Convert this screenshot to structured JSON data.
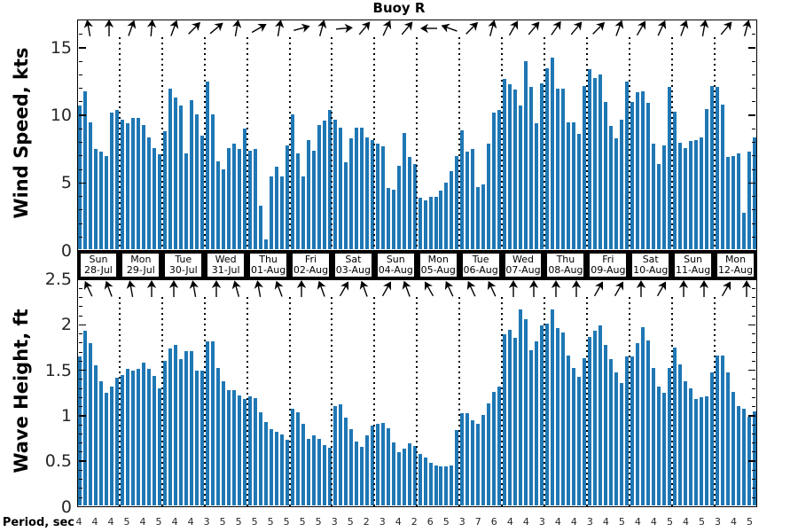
{
  "title": "Buoy R",
  "colors": {
    "bar": "#1f77b4",
    "axis": "#000000",
    "tick_label": "#262626"
  },
  "top_panel": {
    "ylabel": "Wind Speed, kts",
    "yticks": [
      0,
      5,
      10,
      15
    ],
    "ymax": 17.1,
    "minor_step": 1
  },
  "bottom_panel": {
    "ylabel": "Wave Height, ft",
    "yticks": [
      0,
      0.5,
      1,
      1.5,
      2,
      2.5
    ],
    "ymax": 2.5,
    "minor_step": 0.1
  },
  "days": [
    {
      "name": "Sun",
      "date": "28-Jul"
    },
    {
      "name": "Mon",
      "date": "29-Jul"
    },
    {
      "name": "Tue",
      "date": "30-Jul"
    },
    {
      "name": "Wed",
      "date": "31-Jul"
    },
    {
      "name": "Thu",
      "date": "01-Aug"
    },
    {
      "name": "Fri",
      "date": "02-Aug"
    },
    {
      "name": "Sat",
      "date": "03-Aug"
    },
    {
      "name": "Sun",
      "date": "04-Aug"
    },
    {
      "name": "Mon",
      "date": "05-Aug"
    },
    {
      "name": "Tue",
      "date": "06-Aug"
    },
    {
      "name": "Wed",
      "date": "07-Aug"
    },
    {
      "name": "Thu",
      "date": "08-Aug"
    },
    {
      "name": "Fri",
      "date": "09-Aug"
    },
    {
      "name": "Sat",
      "date": "10-Aug"
    },
    {
      "name": "Sun",
      "date": "11-Aug"
    },
    {
      "name": "Mon",
      "date": "12-Aug"
    }
  ],
  "bottom_axis": {
    "label": "Period, sec",
    "values": [
      4,
      4,
      4,
      5,
      4,
      5,
      4,
      4,
      3,
      5,
      5,
      5,
      5,
      5,
      5,
      5,
      3,
      5,
      2,
      3,
      4,
      2,
      6,
      5,
      3,
      7,
      6,
      4,
      4,
      3,
      4,
      4,
      3,
      4,
      5,
      4,
      4,
      5,
      4,
      5,
      3,
      4,
      5
    ]
  },
  "wind_arrows_deg": [
    100,
    90,
    70,
    85,
    70,
    45,
    40,
    80,
    30,
    80,
    15,
    75,
    5,
    50,
    65,
    50,
    180,
    160,
    45,
    75,
    60,
    50,
    55,
    50,
    45,
    70,
    60,
    65,
    70,
    80,
    50,
    75
  ],
  "wave_arrows_deg": [
    115,
    110,
    100,
    90,
    90,
    100,
    90,
    105,
    100,
    110,
    90,
    110,
    60,
    110,
    60,
    110,
    120,
    115,
    115,
    115,
    90,
    90,
    90,
    90,
    60,
    60,
    90,
    60,
    90,
    90,
    60,
    90
  ],
  "chart_data": [
    {
      "type": "bar",
      "title": "Buoy R",
      "ylabel": "Wind Speed, kts",
      "ylim": [
        0,
        17.1
      ],
      "yticks": [
        0,
        5,
        10,
        15
      ],
      "bars_per_day": 8,
      "categories": [
        "Sun 28-Jul",
        "Mon 29-Jul",
        "Tue 30-Jul",
        "Wed 31-Jul",
        "Thu 01-Aug",
        "Fri 02-Aug",
        "Sat 03-Aug",
        "Sun 04-Aug",
        "Mon 05-Aug",
        "Tue 06-Aug",
        "Wed 07-Aug",
        "Thu 08-Aug",
        "Fri 09-Aug",
        "Sat 10-Aug",
        "Sun 11-Aug",
        "Mon 12-Aug"
      ],
      "values": [
        10.7,
        11.8,
        9.5,
        7.5,
        7.3,
        7.0,
        10.2,
        10.4,
        9.7,
        9.4,
        9.8,
        9.8,
        9.3,
        8.4,
        7.6,
        7.1,
        8.8,
        12.0,
        11.3,
        10.7,
        7.2,
        11.1,
        10.1,
        8.5,
        12.5,
        10.1,
        6.6,
        6.0,
        7.6,
        7.9,
        7.5,
        9.0,
        7.4,
        7.5,
        3.3,
        0.8,
        5.5,
        6.2,
        5.5,
        7.8,
        10.1,
        7.2,
        5.5,
        8.2,
        7.4,
        9.3,
        9.6,
        10.4,
        9.7,
        9.1,
        6.5,
        8.3,
        9.1,
        9.1,
        8.4,
        8.2,
        7.9,
        7.7,
        4.6,
        4.5,
        6.3,
        8.7,
        6.9,
        6.4,
        3.9,
        3.7,
        4.0,
        4.0,
        4.4,
        5.0,
        5.9,
        7.0,
        8.9,
        7.3,
        7.5,
        4.7,
        4.9,
        7.9,
        10.2,
        10.4,
        12.7,
        12.3,
        11.9,
        10.7,
        14.0,
        12.1,
        9.4,
        12.4,
        13.5,
        14.3,
        12.0,
        12.0,
        9.5,
        9.5,
        8.6,
        12.2,
        13.4,
        12.8,
        13.0,
        11.0,
        9.2,
        8.3,
        9.7,
        12.5,
        11.0,
        11.7,
        11.8,
        10.9,
        7.9,
        6.4,
        7.8,
        12.1,
        10.3,
        8.0,
        7.6,
        8.1,
        8.2,
        8.4,
        10.5,
        12.2,
        12.1,
        10.8,
        6.9,
        7.0,
        7.2,
        2.8,
        7.3,
        8.4
      ]
    },
    {
      "type": "bar",
      "ylabel": "Wave Height, ft",
      "ylim": [
        0,
        2.5
      ],
      "yticks": [
        0,
        0.5,
        1,
        1.5,
        2,
        2.5
      ],
      "bars_per_day": 8,
      "categories": [
        "Sun 28-Jul",
        "Mon 29-Jul",
        "Tue 30-Jul",
        "Wed 31-Jul",
        "Thu 01-Aug",
        "Fri 02-Aug",
        "Sat 03-Aug",
        "Sun 04-Aug",
        "Mon 05-Aug",
        "Tue 06-Aug",
        "Wed 07-Aug",
        "Thu 08-Aug",
        "Fri 09-Aug",
        "Sat 10-Aug",
        "Sun 11-Aug",
        "Mon 12-Aug"
      ],
      "values": [
        1.65,
        1.93,
        1.8,
        1.55,
        1.38,
        1.25,
        1.32,
        1.42,
        1.45,
        1.52,
        1.5,
        1.52,
        1.58,
        1.52,
        1.44,
        1.3,
        1.6,
        1.74,
        1.78,
        1.62,
        1.71,
        1.71,
        1.5,
        1.5,
        1.82,
        1.82,
        1.53,
        1.38,
        1.28,
        1.28,
        1.22,
        1.18,
        1.21,
        1.19,
        1.04,
        0.93,
        0.85,
        0.82,
        0.79,
        0.74,
        1.08,
        1.04,
        0.91,
        0.75,
        0.78,
        0.75,
        0.68,
        0.65,
        1.11,
        1.13,
        0.98,
        0.85,
        0.72,
        0.66,
        0.78,
        0.89,
        0.91,
        0.92,
        0.86,
        0.71,
        0.6,
        0.64,
        0.7,
        0.67,
        0.58,
        0.54,
        0.48,
        0.45,
        0.44,
        0.44,
        0.45,
        0.84,
        1.03,
        1.03,
        0.95,
        0.91,
        1.01,
        1.14,
        1.26,
        1.32,
        1.9,
        1.94,
        1.86,
        2.17,
        2.06,
        1.72,
        1.82,
        1.99,
        2.01,
        2.17,
        1.96,
        1.92,
        1.66,
        1.53,
        1.43,
        1.63,
        1.87,
        1.93,
        1.99,
        1.78,
        1.62,
        1.48,
        1.36,
        1.65,
        1.65,
        1.8,
        1.97,
        1.83,
        1.53,
        1.32,
        1.25,
        1.53,
        1.75,
        1.56,
        1.38,
        1.3,
        1.18,
        1.2,
        1.21,
        1.48,
        1.66,
        1.66,
        1.48,
        1.26,
        1.11,
        1.08,
        0.99,
        1.05
      ]
    }
  ]
}
